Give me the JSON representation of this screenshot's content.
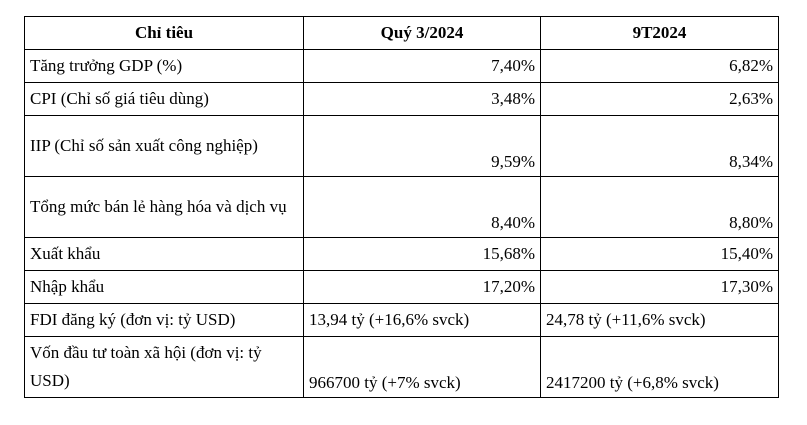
{
  "table": {
    "headers": [
      "Chỉ tiêu",
      "Quý 3/2024",
      "9T2024"
    ],
    "rows": [
      {
        "label": "Tăng trưởng GDP (%)",
        "q3": "7,40%",
        "ytd": "6,82%"
      },
      {
        "label": "CPI (Chỉ số giá tiêu dùng)",
        "q3": "3,48%",
        "ytd": "2,63%"
      },
      {
        "label": "IIP (Chỉ số sản xuất công nghiệp)",
        "q3": "9,59%",
        "ytd": "8,34%"
      },
      {
        "label": "Tổng mức bán lẻ hàng hóa và dịch vụ",
        "q3": "8,40%",
        "ytd": "8,80%"
      },
      {
        "label": "Xuất khẩu",
        "q3": "15,68%",
        "ytd": "15,40%"
      },
      {
        "label": "Nhập khẩu",
        "q3": "17,20%",
        "ytd": "17,30%"
      },
      {
        "label": "FDI đăng ký (đơn vị: tỷ USD)",
        "q3": "13,94 tỷ (+16,6% svck)",
        "ytd": "24,78 tỷ (+11,6% svck)"
      },
      {
        "label": "Vốn đầu tư toàn xã hội (đơn vị: tỷ USD)",
        "q3": "966700 tỷ (+7% svck)",
        "ytd": "2417200 tỷ (+6,8% svck)"
      }
    ]
  }
}
